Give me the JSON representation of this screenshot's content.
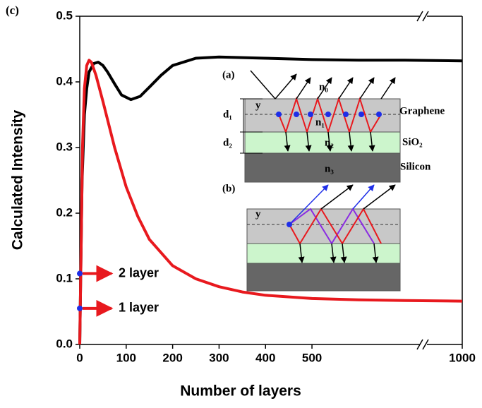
{
  "chart_data": {
    "type": "line",
    "panel_label": "(c)",
    "x_label": "Number of layers",
    "y_label": "Calculated Intensity",
    "xlim": [
      0,
      1000
    ],
    "xbreak": [
      740,
      920
    ],
    "ylim": [
      0,
      0.5
    ],
    "xticks": [
      0,
      100,
      200,
      300,
      400,
      500,
      1000
    ],
    "yticks": [
      {
        "value": 0,
        "label": "0.0"
      },
      0.1,
      0.2,
      0.3,
      0.4,
      0.5
    ],
    "series": [
      {
        "color": "#000000",
        "x": [
          0,
          2,
          5,
          10,
          15,
          20,
          30,
          40,
          50,
          60,
          75,
          90,
          110,
          130,
          150,
          175,
          200,
          250,
          300,
          350,
          400,
          500,
          600,
          700,
          1000
        ],
        "values": [
          0,
          0.1,
          0.25,
          0.35,
          0.39,
          0.415,
          0.428,
          0.43,
          0.425,
          0.415,
          0.397,
          0.38,
          0.373,
          0.378,
          0.392,
          0.41,
          0.425,
          0.436,
          0.438,
          0.437,
          0.436,
          0.434,
          0.433,
          0.433,
          0.432
        ]
      },
      {
        "color": "#e8191e",
        "x": [
          0,
          3,
          6,
          10,
          15,
          20,
          25,
          35,
          50,
          75,
          100,
          125,
          150,
          200,
          250,
          300,
          350,
          400,
          500,
          600,
          700,
          1000
        ],
        "values": [
          0,
          0.15,
          0.3,
          0.39,
          0.425,
          0.433,
          0.43,
          0.41,
          0.37,
          0.3,
          0.24,
          0.195,
          0.16,
          0.12,
          0.1,
          0.088,
          0.08,
          0.075,
          0.07,
          0.068,
          0.067,
          0.066
        ]
      }
    ],
    "annotations": [
      {
        "x": 0,
        "y": 0.108,
        "label": "2 layer"
      },
      {
        "x": 0,
        "y": 0.055,
        "label": "1 layer"
      }
    ],
    "inset": {
      "a_label": "(a)",
      "b_label": "(b)",
      "n0": "n₀",
      "n1": "n₁",
      "n2": "n₂",
      "n3": "n₃",
      "graphene": "Graphene",
      "sio2": "SiO₂",
      "silicon": "Silicon",
      "d1": "d₁",
      "d2": "d₂",
      "y_a": "y",
      "y_b": "y"
    }
  }
}
